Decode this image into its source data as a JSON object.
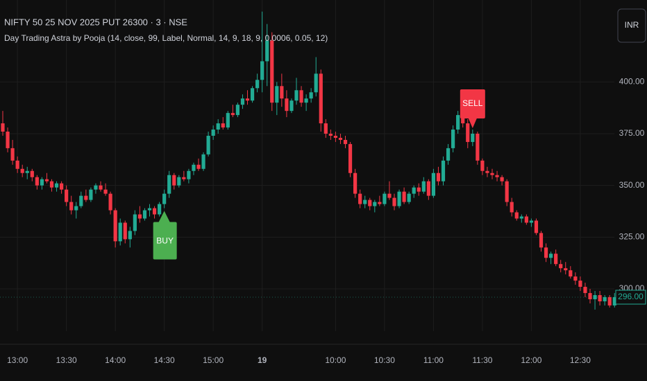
{
  "chart_data": {
    "type": "candlestick",
    "title": "NIFTY 50 25 NOV 2025 PUT 26300 · 3 · NSE",
    "subtitle": "Day Trading Astra by Pooja (14, close, 99, Label, Normal, 14, 9, 18, 9, 0.0006, 0.05, 12)",
    "currency_button": "INR",
    "up_color": "#22ab94",
    "down_color": "#f23645",
    "grid": true,
    "categories": [
      null,
      null,
      null,
      "13:00",
      null,
      null,
      null,
      null,
      null,
      null,
      null,
      null,
      null,
      "13:30",
      null,
      null,
      null,
      null,
      null,
      null,
      null,
      null,
      null,
      "14:00",
      null,
      null,
      null,
      null,
      null,
      null,
      null,
      null,
      null,
      "14:30",
      null,
      null,
      null,
      null,
      null,
      null,
      null,
      null,
      null,
      "15:00",
      null,
      null,
      null,
      null,
      null,
      null,
      null,
      null,
      null,
      "19",
      null,
      null,
      null,
      null,
      null,
      null,
      null,
      null,
      null,
      null,
      null,
      null,
      null,
      null,
      "10:00",
      null,
      null,
      null,
      null,
      null,
      null,
      null,
      null,
      null,
      "10:30",
      null,
      null,
      null,
      null,
      null,
      null,
      null,
      null,
      null,
      "11:00",
      null,
      null,
      null,
      null,
      null,
      null,
      null,
      null,
      null,
      "11:30",
      null,
      null,
      null,
      null,
      null,
      null,
      null,
      null,
      null,
      "12:00",
      null,
      null,
      null,
      null,
      null,
      null,
      null,
      null,
      null,
      "12:30",
      null,
      null,
      null,
      null,
      null,
      null,
      null
    ],
    "open": [
      380,
      376,
      368,
      362,
      358,
      356,
      357,
      354,
      350,
      353,
      352,
      349,
      351,
      348,
      342,
      338,
      340,
      345,
      343,
      348,
      350,
      348,
      346,
      338,
      323,
      332,
      324,
      328,
      336,
      334,
      338,
      339,
      336,
      341,
      346,
      355,
      350,
      354,
      353,
      357,
      360,
      358,
      365,
      374,
      377,
      380,
      378,
      385,
      384,
      389,
      392,
      391,
      397,
      401,
      410,
      420,
      390,
      398,
      392,
      386,
      391,
      396,
      390,
      392,
      395,
      404,
      380,
      375,
      374,
      373,
      372,
      370,
      356,
      346,
      341,
      343,
      340,
      342,
      341,
      346,
      344,
      340,
      347,
      342,
      346,
      349,
      347,
      352,
      345,
      356,
      352,
      362,
      368,
      377,
      384,
      380,
      371,
      375,
      362,
      357,
      356,
      355,
      354,
      352,
      342,
      337,
      334,
      335,
      332,
      333,
      327,
      320,
      315,
      317,
      312,
      310,
      309,
      306,
      304,
      301,
      298,
      295,
      297,
      294,
      296,
      292
    ],
    "high": [
      386,
      378,
      372,
      364,
      360,
      359,
      358,
      355,
      354,
      356,
      353,
      352,
      352,
      350,
      345,
      342,
      347,
      348,
      349,
      351,
      352,
      351,
      347,
      339,
      334,
      333,
      330,
      338,
      340,
      339,
      341,
      340,
      342,
      348,
      357,
      356,
      355,
      357,
      358,
      361,
      363,
      366,
      376,
      379,
      382,
      383,
      386,
      389,
      390,
      394,
      396,
      398,
      404,
      434,
      428,
      424,
      400,
      404,
      396,
      392,
      402,
      398,
      394,
      397,
      412,
      406,
      382,
      377,
      376,
      375,
      374,
      371,
      358,
      348,
      345,
      344,
      343,
      345,
      347,
      352,
      346,
      348,
      349,
      347,
      350,
      351,
      354,
      353,
      358,
      359,
      364,
      370,
      379,
      386,
      388,
      382,
      377,
      376,
      363,
      359,
      358,
      357,
      355,
      353,
      344,
      338,
      336,
      336,
      334,
      334,
      328,
      322,
      318,
      319,
      314,
      313,
      311,
      308,
      306,
      303,
      300,
      299,
      299,
      297,
      297,
      298
    ],
    "low": [
      374,
      366,
      360,
      356,
      354,
      353,
      352,
      348,
      348,
      351,
      347,
      347,
      346,
      340,
      336,
      334,
      339,
      342,
      342,
      346,
      347,
      345,
      336,
      320,
      321,
      322,
      320,
      326,
      332,
      333,
      335,
      334,
      335,
      339,
      344,
      348,
      349,
      352,
      351,
      355,
      357,
      357,
      364,
      372,
      375,
      377,
      377,
      383,
      383,
      387,
      389,
      390,
      395,
      395,
      398,
      386,
      384,
      388,
      383,
      385,
      389,
      388,
      386,
      390,
      393,
      376,
      373,
      372,
      371,
      370,
      368,
      354,
      344,
      339,
      339,
      338,
      337,
      340,
      340,
      343,
      338,
      339,
      341,
      341,
      344,
      345,
      346,
      343,
      344,
      350,
      350,
      360,
      366,
      375,
      378,
      368,
      369,
      360,
      355,
      354,
      353,
      352,
      350,
      340,
      335,
      333,
      332,
      331,
      330,
      326,
      318,
      313,
      312,
      311,
      308,
      307,
      305,
      302,
      299,
      296,
      293,
      290,
      292,
      292,
      291,
      291
    ],
    "close": [
      376,
      368,
      362,
      358,
      356,
      357,
      354,
      350,
      353,
      352,
      349,
      351,
      348,
      342,
      338,
      340,
      345,
      343,
      348,
      350,
      348,
      346,
      338,
      323,
      332,
      324,
      328,
      336,
      334,
      338,
      339,
      336,
      341,
      346,
      355,
      350,
      354,
      353,
      357,
      360,
      358,
      365,
      374,
      377,
      380,
      378,
      385,
      384,
      389,
      392,
      391,
      397,
      401,
      410,
      420,
      390,
      398,
      392,
      386,
      391,
      396,
      390,
      392,
      395,
      404,
      380,
      375,
      374,
      373,
      372,
      370,
      356,
      346,
      341,
      343,
      340,
      342,
      341,
      346,
      344,
      340,
      347,
      342,
      346,
      349,
      347,
      352,
      345,
      356,
      352,
      362,
      368,
      377,
      384,
      380,
      371,
      375,
      362,
      357,
      356,
      355,
      354,
      352,
      342,
      337,
      334,
      335,
      332,
      333,
      327,
      320,
      315,
      317,
      312,
      310,
      309,
      306,
      304,
      301,
      298,
      295,
      297,
      294,
      296,
      292,
      296
    ],
    "last_price_label": "296.00",
    "signals": [
      {
        "text": "BUY",
        "index": 33,
        "color": "#4caf50"
      },
      {
        "text": "SELL",
        "index": 96,
        "color": "#f23645"
      }
    ],
    "ylim": [
      279.6,
      439.6
    ],
    "yticks": [
      {
        "value": 300,
        "label": "300.00"
      },
      {
        "value": 325,
        "label": "325.00"
      },
      {
        "value": 350,
        "label": "350.00"
      },
      {
        "value": 375,
        "label": "375.00"
      },
      {
        "value": 400,
        "label": "400.00"
      }
    ]
  }
}
